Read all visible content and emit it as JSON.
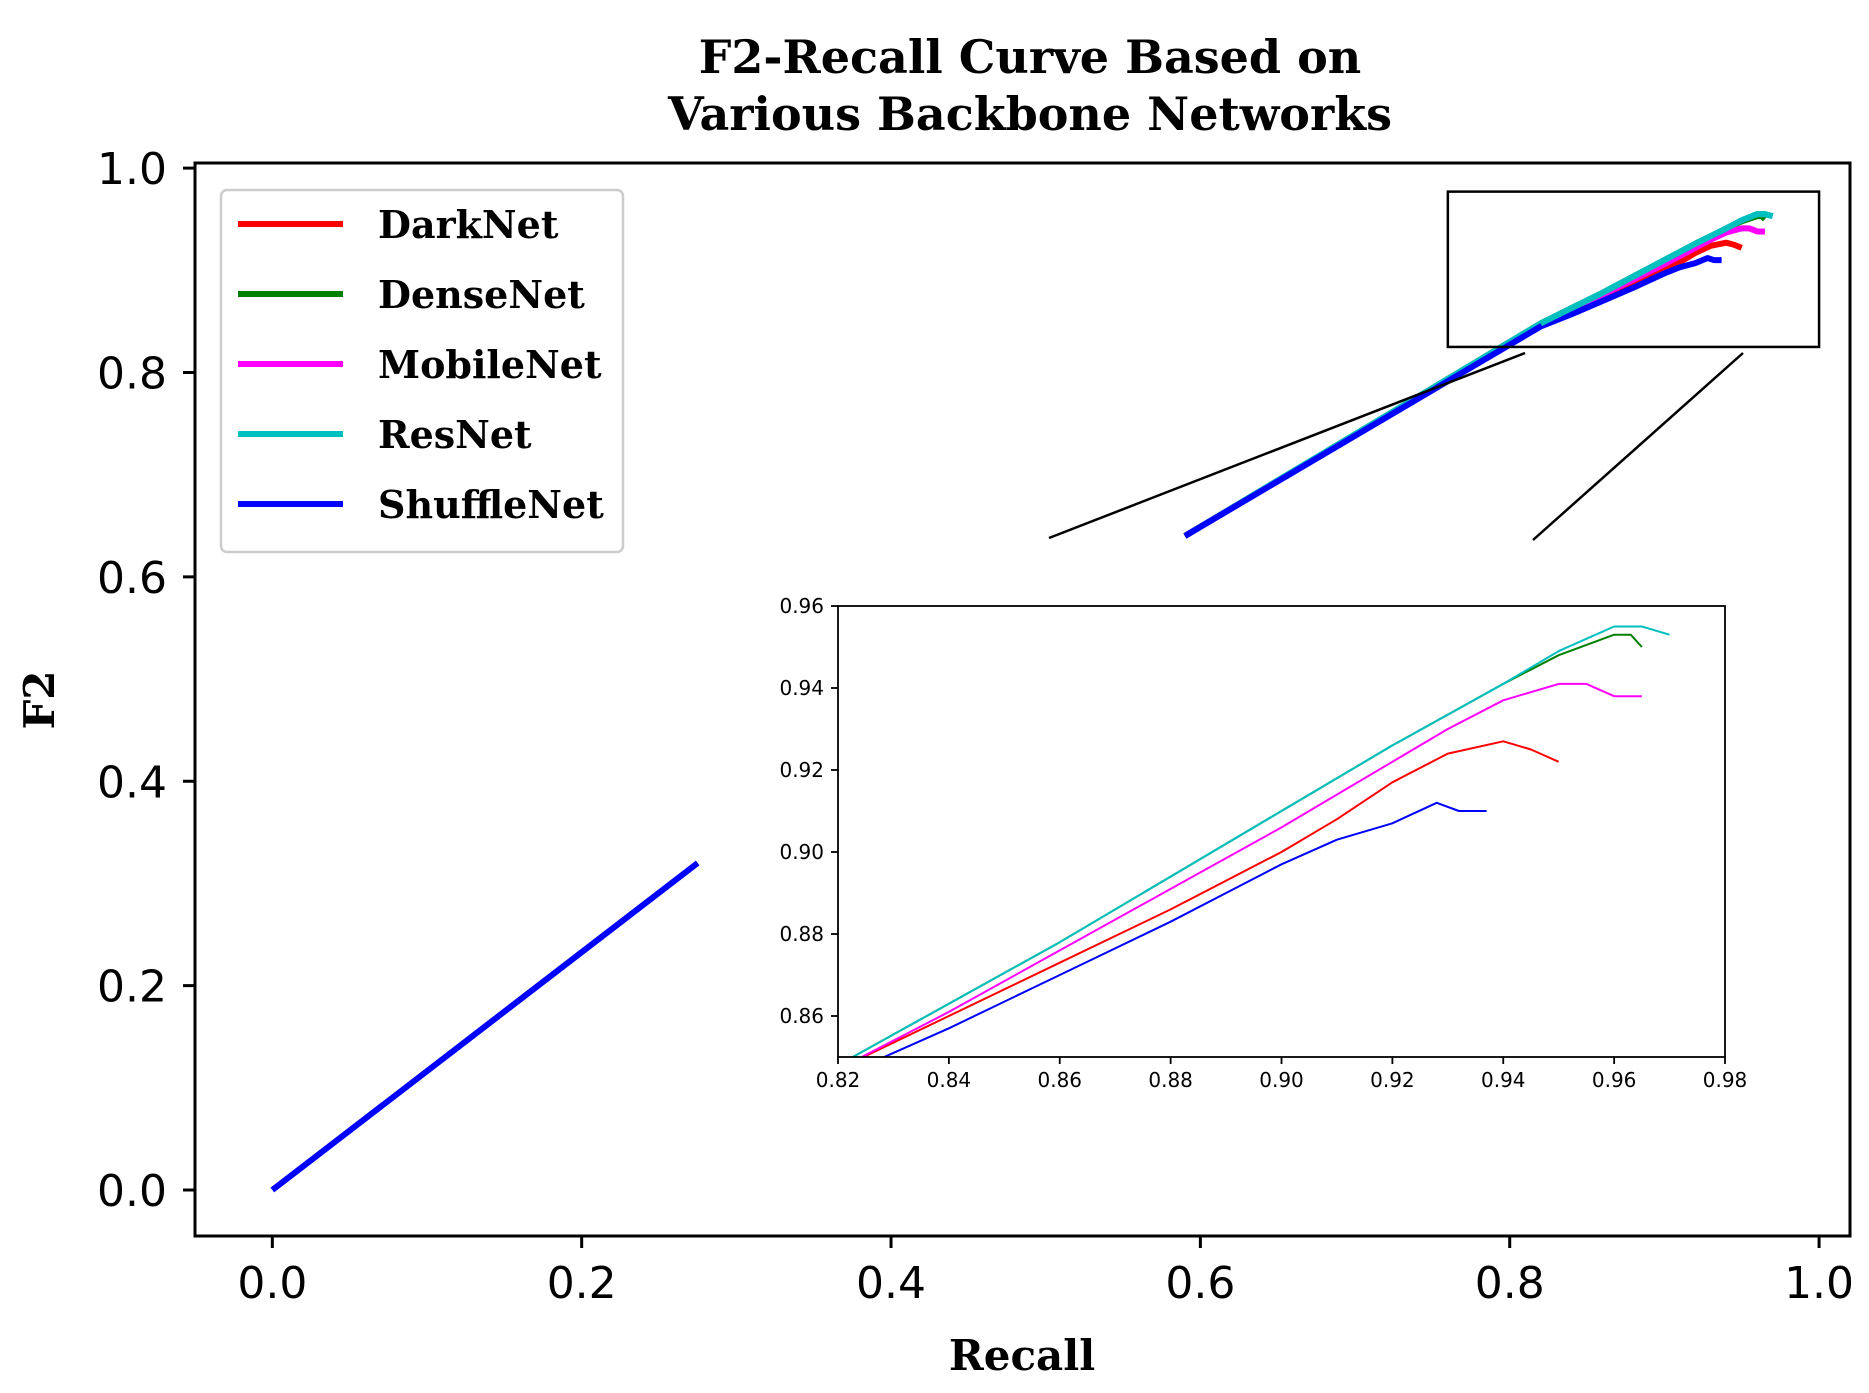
{
  "chart_data": {
    "type": "line",
    "title_lines": [
      "F2-Recall Curve Based on",
      "Various Backbone Networks"
    ],
    "xlabel": "Recall",
    "ylabel": "F2",
    "xlim": [
      -0.05,
      1.02
    ],
    "ylim": [
      -0.045,
      1.005
    ],
    "x_ticks": [
      {
        "value": 0.0,
        "label": "0.0"
      },
      {
        "value": 0.2,
        "label": "0.2"
      },
      {
        "value": 0.4,
        "label": "0.4"
      },
      {
        "value": 0.6,
        "label": "0.6"
      },
      {
        "value": 0.8,
        "label": "0.8"
      },
      {
        "value": 1.0,
        "label": "1.0"
      }
    ],
    "y_ticks": [
      {
        "value": 0.0,
        "label": "0.0"
      },
      {
        "value": 0.2,
        "label": "0.2"
      },
      {
        "value": 0.4,
        "label": "0.4"
      },
      {
        "value": 0.6,
        "label": "0.6"
      },
      {
        "value": 0.8,
        "label": "0.8"
      },
      {
        "value": 1.0,
        "label": "1.0"
      }
    ],
    "legend_position": "upper-left",
    "series": [
      {
        "name": "DarkNet",
        "color": "#ff0000",
        "x": [
          0.82,
          0.84,
          0.86,
          0.88,
          0.9,
          0.91,
          0.92,
          0.93,
          0.94,
          0.945,
          0.95
        ],
        "y": [
          0.847,
          0.86,
          0.873,
          0.886,
          0.9,
          0.908,
          0.917,
          0.924,
          0.927,
          0.925,
          0.922
        ]
      },
      {
        "name": "DenseNet",
        "color": "#008000",
        "x": [
          0.82,
          0.84,
          0.86,
          0.88,
          0.9,
          0.92,
          0.94,
          0.95,
          0.96,
          0.963,
          0.965
        ],
        "y": [
          0.848,
          0.863,
          0.878,
          0.894,
          0.91,
          0.926,
          0.941,
          0.948,
          0.953,
          0.953,
          0.95
        ]
      },
      {
        "name": "MobileNet",
        "color": "#ff00ff",
        "x": [
          0.82,
          0.84,
          0.86,
          0.88,
          0.9,
          0.92,
          0.93,
          0.94,
          0.95,
          0.955,
          0.96,
          0.965
        ],
        "y": [
          0.847,
          0.861,
          0.876,
          0.891,
          0.906,
          0.922,
          0.93,
          0.937,
          0.941,
          0.941,
          0.938,
          0.938
        ]
      },
      {
        "name": "ResNet",
        "color": "#00bfbf",
        "x": [
          0.82,
          0.84,
          0.86,
          0.88,
          0.9,
          0.92,
          0.94,
          0.95,
          0.96,
          0.965,
          0.97
        ],
        "y": [
          0.848,
          0.863,
          0.878,
          0.894,
          0.91,
          0.926,
          0.941,
          0.949,
          0.955,
          0.955,
          0.953
        ]
      },
      {
        "name": "ShuffleNet",
        "color": "#0000ff",
        "x": [
          0.82,
          0.84,
          0.86,
          0.88,
          0.9,
          0.91,
          0.92,
          0.928,
          0.932,
          0.937
        ],
        "y": [
          0.845,
          0.857,
          0.87,
          0.883,
          0.897,
          0.903,
          0.907,
          0.912,
          0.91,
          0.91
        ]
      }
    ],
    "lower_segment": {
      "x": [
        0.0,
        0.275
      ],
      "y": [
        0.0,
        0.32
      ]
    },
    "upper_segment": {
      "x": [
        0.59,
        0.82
      ],
      "y": [
        0.64,
        0.845
      ]
    },
    "zoom_box": {
      "x": [
        0.76,
        1.0
      ],
      "y": [
        0.825,
        0.977
      ]
    },
    "inset": {
      "xlim": [
        0.82,
        0.98
      ],
      "ylim": [
        0.85,
        0.96
      ],
      "x_ticks": [
        {
          "value": 0.82,
          "label": "0.82"
        },
        {
          "value": 0.84,
          "label": "0.84"
        },
        {
          "value": 0.86,
          "label": "0.86"
        },
        {
          "value": 0.88,
          "label": "0.88"
        },
        {
          "value": 0.9,
          "label": "0.90"
        },
        {
          "value": 0.92,
          "label": "0.92"
        },
        {
          "value": 0.94,
          "label": "0.94"
        },
        {
          "value": 0.96,
          "label": "0.96"
        },
        {
          "value": 0.98,
          "label": "0.98"
        }
      ],
      "y_ticks": [
        {
          "value": 0.86,
          "label": "0.86"
        },
        {
          "value": 0.88,
          "label": "0.88"
        },
        {
          "value": 0.9,
          "label": "0.90"
        },
        {
          "value": 0.92,
          "label": "0.92"
        },
        {
          "value": 0.94,
          "label": "0.94"
        },
        {
          "value": 0.96,
          "label": "0.96"
        }
      ]
    }
  }
}
